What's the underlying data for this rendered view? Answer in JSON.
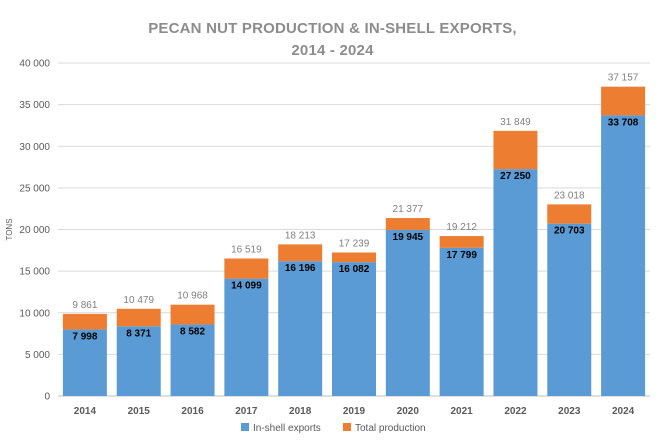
{
  "chart_data": {
    "type": "bar",
    "title_lines": [
      "PECAN NUT PRODUCTION & IN-SHELL EXPORTS,",
      "2014 - 2024"
    ],
    "ylabel": "TONS",
    "xlabel": "",
    "ylim": [
      0,
      40000
    ],
    "yticks": [
      0,
      5000,
      10000,
      15000,
      20000,
      25000,
      30000,
      35000,
      40000
    ],
    "ytick_labels": [
      "0",
      "5 000",
      "10 000",
      "15 000",
      "20 000",
      "25 000",
      "30 000",
      "35 000",
      "40 000"
    ],
    "grid": true,
    "legend_position": "bottom",
    "categories": [
      "2014",
      "2015",
      "2016",
      "2017",
      "2018",
      "2019",
      "2020",
      "2021",
      "2022",
      "2023",
      "2024"
    ],
    "series": [
      {
        "name": "In-shell exports",
        "color": "#5b9bd5",
        "values": [
          7998,
          8371,
          8582,
          14099,
          16196,
          16082,
          19945,
          17799,
          27250,
          20703,
          33708
        ],
        "labels": [
          "7 998",
          "8 371",
          "8 582",
          "14 099",
          "16 196",
          "16 082",
          "19 945",
          "17 799",
          "27 250",
          "20 703",
          "33 708"
        ]
      },
      {
        "name": "Total production",
        "color": "#ed7d31",
        "values": [
          9861,
          10479,
          10968,
          16519,
          18213,
          17239,
          21377,
          19212,
          31849,
          23018,
          37157
        ],
        "labels": [
          "9 861",
          "10 479",
          "10 968",
          "16 519",
          "18 213",
          "17 239",
          "21 377",
          "19 212",
          "31 849",
          "23 018",
          "37 157"
        ]
      }
    ]
  }
}
